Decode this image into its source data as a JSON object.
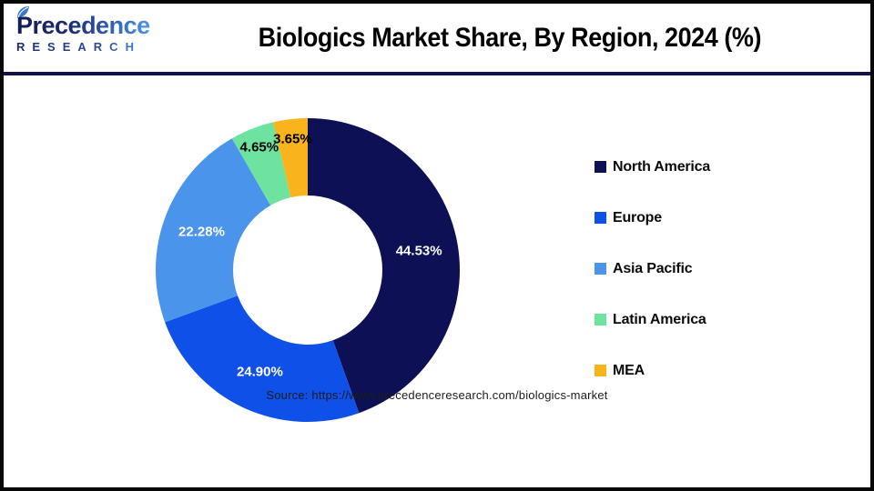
{
  "header": {
    "logo": {
      "brand": "Precedence",
      "sub": "RESEARCH"
    },
    "title": "Biologics Market Share, By Region, 2024 (%)"
  },
  "chart_data": {
    "type": "pie",
    "subtype": "donut",
    "title": "Biologics Market Share, By Region, 2024 (%)",
    "unit": "%",
    "categories": [
      "North America",
      "Europe",
      "Asia Pacific",
      "Latin America",
      "MEA"
    ],
    "values": [
      44.53,
      24.9,
      22.28,
      4.65,
      3.65
    ],
    "labels": [
      "44.53%",
      "24.90%",
      "22.28%",
      "4.65%",
      "3.65%"
    ],
    "colors": [
      "#0d1055",
      "#0f50e8",
      "#4b94ec",
      "#6ee3a0",
      "#f9b41d"
    ],
    "label_colors": [
      "#ffffff",
      "#ffffff",
      "#ffffff",
      "#000000",
      "#000000"
    ],
    "start_angle_deg": 0,
    "direction": "clockwise",
    "legend_position": "right",
    "donut_hole_ratio": 0.49
  },
  "footer": {
    "source": "Source: https://www.precedenceresearch.com/biologics-market"
  },
  "theme": {
    "separator_color": "#11114e",
    "frame_border_color": "#070707",
    "background": "#ffffff"
  }
}
